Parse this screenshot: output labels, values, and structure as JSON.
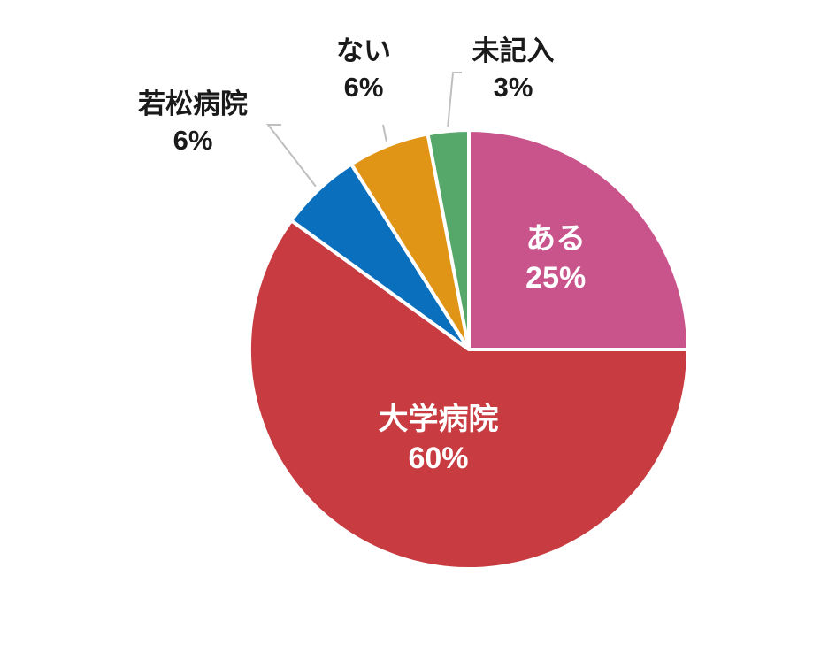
{
  "chart_data": {
    "type": "pie",
    "title": "",
    "start_angle_deg": 0,
    "direction": "clockwise",
    "slices": [
      {
        "category": "ある",
        "value": 25,
        "value_label": "25%",
        "color": "#c9548c",
        "label_placement": "inside"
      },
      {
        "category": "大学病院",
        "value": 60,
        "value_label": "60%",
        "color": "#c83c41",
        "label_placement": "inside"
      },
      {
        "category": "若松病院",
        "value": 6,
        "value_label": "6%",
        "color": "#0a70be",
        "label_placement": "outside"
      },
      {
        "category": "ない",
        "value": 6,
        "value_label": "6%",
        "color": "#e09516",
        "label_placement": "outside"
      },
      {
        "category": "未記入",
        "value": 3,
        "value_label": "3%",
        "color": "#55a86a",
        "label_placement": "outside"
      }
    ],
    "label_text_color_inside": "#ffffff",
    "label_text_color_outside": "#1a1a1a",
    "leader_line_color": "#bfbfbf",
    "slice_border_color": "#ffffff"
  }
}
